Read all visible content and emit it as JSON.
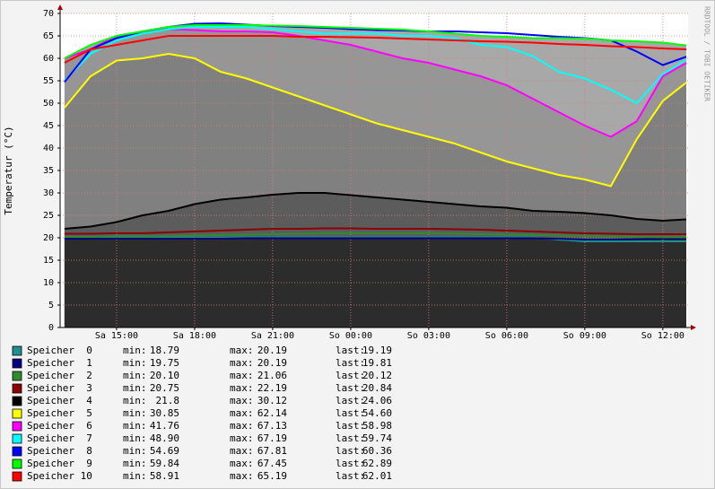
{
  "chart_data": {
    "type": "line",
    "y_label": "Temperatur (°C)",
    "watermark": "RRDTOOL / TOBI OETIKER",
    "x": [
      13,
      14,
      15,
      16,
      17,
      18,
      19,
      20,
      21,
      22,
      23,
      24,
      25,
      26,
      27,
      28,
      29,
      30,
      31,
      32,
      33,
      34,
      35,
      36,
      36.9
    ],
    "xlim": [
      12.83,
      36.97
    ],
    "xticks": [
      {
        "value": 15,
        "label": "Sa 15:00"
      },
      {
        "value": 18,
        "label": "Sa 18:00"
      },
      {
        "value": 21,
        "label": "Sa 21:00"
      },
      {
        "value": 24,
        "label": "So 00:00"
      },
      {
        "value": 27,
        "label": "So 03:00"
      },
      {
        "value": 30,
        "label": "So 06:00"
      },
      {
        "value": 33,
        "label": "So 09:00"
      },
      {
        "value": 36,
        "label": "So 12:00"
      }
    ],
    "ylim": [
      0,
      70
    ],
    "yticks": [
      0,
      5,
      10,
      15,
      20,
      25,
      30,
      35,
      40,
      45,
      50,
      55,
      60,
      65,
      70
    ],
    "grid": true,
    "stat_labels": [
      "min:",
      "max:",
      "last:"
    ],
    "series": [
      {
        "name": "Speicher  0",
        "color": "#1e9090",
        "values": [
          20,
          20,
          20,
          20,
          20,
          20,
          20,
          20.1,
          20.1,
          20.1,
          20.1,
          20.1,
          20.1,
          20.1,
          20.1,
          20.1,
          20.1,
          20.1,
          20.1,
          19.6,
          19.2,
          19.2,
          19.2,
          19.2,
          19.2
        ],
        "min": 18.79,
        "max": 20.19,
        "last": 19.19
      },
      {
        "name": "Speicher  1",
        "color": "#000080",
        "fill": "#2c2c2c",
        "values": [
          19.8,
          19.8,
          19.8,
          19.8,
          19.8,
          19.8,
          19.8,
          19.9,
          19.9,
          19.9,
          19.9,
          19.9,
          19.9,
          19.9,
          19.9,
          19.9,
          19.9,
          19.9,
          19.9,
          19.8,
          19.6,
          19.6,
          19.7,
          19.8,
          19.8
        ],
        "min": 19.75,
        "max": 20.19,
        "last": 19.81
      },
      {
        "name": "Speicher  2",
        "color": "#2e8b2e",
        "values": [
          20.2,
          20.2,
          20.3,
          20.3,
          20.4,
          20.5,
          20.6,
          20.7,
          20.8,
          20.9,
          21,
          21,
          21,
          21,
          21,
          20.9,
          20.8,
          20.7,
          20.6,
          20.5,
          20.4,
          20.3,
          20.2,
          20.1,
          20.1
        ],
        "min": {
          "value": 20.1,
          "label": "20.10"
        },
        "max": 21.06,
        "last": 20.12
      },
      {
        "name": "Speicher  3",
        "color": "#8b0000",
        "values": [
          20.9,
          20.9,
          21,
          21,
          21.2,
          21.4,
          21.6,
          21.8,
          22,
          22,
          22.1,
          22.1,
          22,
          22,
          22,
          21.9,
          21.8,
          21.6,
          21.4,
          21.2,
          21,
          20.9,
          20.8,
          20.8,
          20.8
        ],
        "min": 20.75,
        "max": 22.19,
        "last": 20.84
      },
      {
        "name": "Speicher  4",
        "color": "#000000",
        "fill": "#5c5c5c",
        "values": [
          22,
          22.5,
          23.5,
          25,
          26,
          27.5,
          28.5,
          29,
          29.6,
          30,
          30,
          29.5,
          29,
          28.5,
          28,
          27.5,
          27,
          26.7,
          26,
          25.8,
          25.5,
          25,
          24.2,
          23.8,
          24.1
        ],
        "min": 21.8,
        "max": 30.12,
        "last": 24.06
      },
      {
        "name": "Speicher  5",
        "color": "#ffff00",
        "fill": "#808080",
        "values": [
          49,
          56,
          59.5,
          60,
          61,
          60,
          57,
          55.5,
          53.5,
          51.5,
          49.5,
          47.5,
          45.5,
          44,
          42.5,
          41,
          39,
          37,
          35.5,
          34,
          33,
          31.5,
          42,
          50.5,
          54.6
        ],
        "min": 30.85,
        "max": 62.14,
        "last": {
          "value": 54.6,
          "label": "54.60"
        }
      },
      {
        "name": "Speicher  6",
        "color": "#ff00ff",
        "fill": "#969696",
        "values": [
          60,
          62,
          65,
          66,
          66.5,
          66.3,
          66,
          66,
          65.8,
          65,
          64,
          63,
          61.5,
          60,
          59,
          57.5,
          56,
          54,
          51,
          48,
          45,
          42.5,
          46,
          56,
          58.98
        ],
        "min": 41.76,
        "max": 67.13,
        "last": 58.98
      },
      {
        "name": "Speicher  7",
        "color": "#00ffff",
        "values": [
          55,
          61,
          64,
          65.5,
          66.5,
          67,
          67,
          67,
          66.5,
          66,
          65.5,
          65.5,
          65.5,
          65,
          65,
          64.5,
          63,
          62.5,
          60.5,
          57,
          55.5,
          53,
          50,
          56.5,
          59.74
        ],
        "min": {
          "value": 48.9,
          "label": "48.90"
        },
        "max": 67.19,
        "last": 59.74
      },
      {
        "name": "Speicher  8",
        "color": "#0000ff",
        "values": [
          54.7,
          62,
          64.5,
          66,
          67,
          67.7,
          67.8,
          67.5,
          67.2,
          67,
          66.8,
          66.5,
          66.3,
          66.2,
          66,
          66,
          65.8,
          65.6,
          65.2,
          64.8,
          64.5,
          64,
          61.5,
          58.5,
          60.36
        ],
        "min": 54.69,
        "max": 67.81,
        "last": 60.36
      },
      {
        "name": "Speicher  9",
        "color": "#00ff00",
        "fill": "#a8a8a8",
        "values": [
          60,
          63,
          65,
          66,
          67,
          67.4,
          67.4,
          67.4,
          67.3,
          67.2,
          67,
          66.8,
          66.6,
          66.4,
          66,
          65.5,
          65,
          64.8,
          64.5,
          64.5,
          64.4,
          64,
          63.8,
          63.5,
          62.89
        ],
        "min": 59.84,
        "max": 67.45,
        "last": 62.89
      },
      {
        "name": "Speicher 10",
        "color": "#ff0000",
        "values": [
          59,
          62,
          63,
          64,
          65,
          65,
          65,
          65,
          65,
          64.8,
          64.8,
          64.7,
          64.6,
          64.4,
          64.2,
          64,
          63.8,
          63.7,
          63.5,
          63.2,
          63,
          62.7,
          62.5,
          62.2,
          62.01
        ],
        "min": 58.91,
        "max": 65.19,
        "last": 62.01
      }
    ]
  }
}
